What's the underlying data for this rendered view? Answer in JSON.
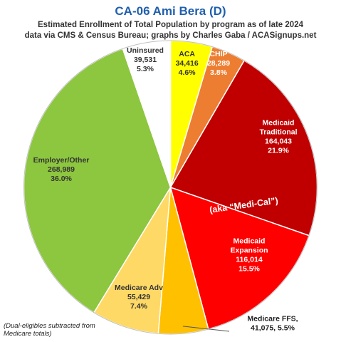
{
  "chart_data": {
    "type": "pie",
    "title": "CA-06 Ami Bera (D)",
    "subtitle_lines": [
      "Estimated Enrollment of Total Population by program as of late 2024",
      "data via CMS & Census Bureau; graphs by Charles Gaba / ACASignups.net"
    ],
    "slices": [
      {
        "label": "ACA",
        "value": 34416,
        "value_text": "34,416",
        "percent_text": "4.6%",
        "color": "#ffff00",
        "text_color": "#333333"
      },
      {
        "label": "CHIP",
        "value": 28289,
        "value_text": "28,289",
        "percent_text": "3.8%",
        "color": "#ed7d31",
        "text_color": "#ffffff"
      },
      {
        "label": "Medicaid Traditional",
        "label_lines": [
          "Medicaid",
          "Traditional"
        ],
        "value": 164043,
        "value_text": "164,043",
        "percent_text": "21.9%",
        "color": "#c00000",
        "text_color": "#ffffff"
      },
      {
        "label": "Medicaid Expansion",
        "label_lines": [
          "Medicaid",
          "Expansion"
        ],
        "value": 116014,
        "value_text": "116,014",
        "percent_text": "15.5%",
        "color": "#ff0000",
        "text_color": "#ffffff"
      },
      {
        "label": "Medicare FFS",
        "label_lines": [
          "Medicare FFS,",
          "41,075, 5.5%"
        ],
        "value": 41075,
        "value_text": "41,075",
        "percent_text": "5.5%",
        "color": "#ffc000",
        "text_color": "#222222"
      },
      {
        "label": "Medicare Adv",
        "value": 55429,
        "value_text": "55,429",
        "percent_text": "7.4%",
        "color": "#ffd966",
        "text_color": "#333333"
      },
      {
        "label": "Employer/Other",
        "value": 268989,
        "value_text": "268,989",
        "percent_text": "36.0%",
        "color": "#8dc63f",
        "text_color": "#333333"
      },
      {
        "label": "Uninsured",
        "value": 39531,
        "value_text": "39,531",
        "percent_text": "5.3%",
        "color": "#ffffff",
        "text_color": "#333333"
      }
    ],
    "annotation": "(aka “Medi-Cal”)",
    "footnote": "(Dual-eligibles subtracted from Medicare totals)",
    "start_angle_deg": 0,
    "direction": "clockwise"
  }
}
